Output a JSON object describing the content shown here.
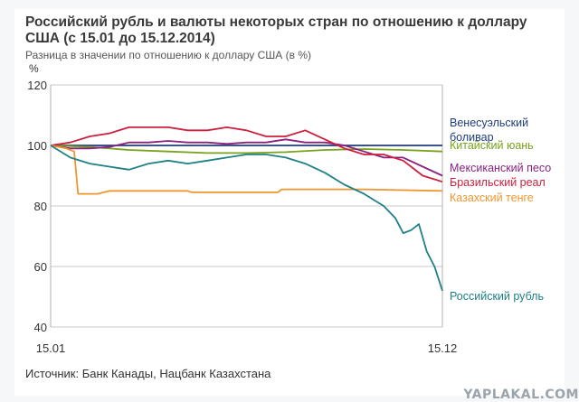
{
  "title": "Российский рубль и валюты некоторых стран по отношению к доллару США (с 15.01 до 15.12.2014)",
  "subtitle": "Разница в значении по отношению к доллару США (в %)",
  "source": "Источник: Банк Канады, Нацбанк Казахстана",
  "watermark": "YAPLAKAL.COM",
  "chart_data": {
    "type": "line",
    "ylabel": "%",
    "ylim": [
      40,
      120
    ],
    "yticks": [
      40,
      60,
      80,
      100,
      120
    ],
    "xlim": [
      0,
      1
    ],
    "xticks": [
      {
        "x": 0,
        "label": "15.01"
      },
      {
        "x": 1,
        "label": "15.12"
      }
    ],
    "grid": true,
    "legend_placement": "right, beside line ends",
    "series": [
      {
        "name": "Венесуэльский боливар",
        "color": "#1f3d7a",
        "points": [
          [
            0,
            100
          ],
          [
            1,
            100
          ]
        ]
      },
      {
        "name": "Китайский юань",
        "color": "#7aa21c",
        "points": [
          [
            0,
            100
          ],
          [
            0.1,
            99.5
          ],
          [
            0.2,
            98.5
          ],
          [
            0.3,
            98
          ],
          [
            0.4,
            97.5
          ],
          [
            0.5,
            97.5
          ],
          [
            0.6,
            97.8
          ],
          [
            0.7,
            98.5
          ],
          [
            0.8,
            98.8
          ],
          [
            0.9,
            98.5
          ],
          [
            1,
            98
          ]
        ]
      },
      {
        "name": "Мексиканский песо",
        "color": "#8a2282",
        "points": [
          [
            0,
            100
          ],
          [
            0.05,
            99
          ],
          [
            0.1,
            99
          ],
          [
            0.15,
            99.5
          ],
          [
            0.2,
            101
          ],
          [
            0.25,
            101
          ],
          [
            0.3,
            101.5
          ],
          [
            0.35,
            101
          ],
          [
            0.4,
            101
          ],
          [
            0.45,
            100.5
          ],
          [
            0.5,
            101
          ],
          [
            0.55,
            101
          ],
          [
            0.6,
            102
          ],
          [
            0.65,
            101
          ],
          [
            0.7,
            101
          ],
          [
            0.75,
            100
          ],
          [
            0.8,
            98
          ],
          [
            0.85,
            96
          ],
          [
            0.9,
            96
          ],
          [
            0.95,
            93
          ],
          [
            1,
            90
          ]
        ]
      },
      {
        "name": "Бразильский реал",
        "color": "#cc1f3d",
        "points": [
          [
            0,
            100
          ],
          [
            0.05,
            101
          ],
          [
            0.1,
            103
          ],
          [
            0.15,
            104
          ],
          [
            0.2,
            106
          ],
          [
            0.25,
            106
          ],
          [
            0.3,
            106
          ],
          [
            0.35,
            105
          ],
          [
            0.4,
            105
          ],
          [
            0.45,
            106
          ],
          [
            0.5,
            105
          ],
          [
            0.55,
            103
          ],
          [
            0.6,
            103
          ],
          [
            0.65,
            105
          ],
          [
            0.7,
            102
          ],
          [
            0.75,
            99
          ],
          [
            0.8,
            97
          ],
          [
            0.85,
            97
          ],
          [
            0.9,
            95
          ],
          [
            0.95,
            90
          ],
          [
            1,
            88
          ]
        ]
      },
      {
        "name": "Казахский тенге",
        "color": "#f0962e",
        "points": [
          [
            0,
            100
          ],
          [
            0.04,
            99
          ],
          [
            0.06,
            98
          ],
          [
            0.07,
            84
          ],
          [
            0.12,
            84
          ],
          [
            0.15,
            85
          ],
          [
            0.3,
            85
          ],
          [
            0.35,
            85
          ],
          [
            0.36,
            84.5
          ],
          [
            0.58,
            84.5
          ],
          [
            0.59,
            85.5
          ],
          [
            0.8,
            85.5
          ],
          [
            1,
            85
          ]
        ]
      },
      {
        "name": "Российский рубль",
        "color": "#1f8085",
        "points": [
          [
            0,
            100
          ],
          [
            0.05,
            96
          ],
          [
            0.1,
            94
          ],
          [
            0.15,
            93
          ],
          [
            0.2,
            92
          ],
          [
            0.25,
            94
          ],
          [
            0.3,
            95
          ],
          [
            0.35,
            94
          ],
          [
            0.4,
            95
          ],
          [
            0.45,
            96
          ],
          [
            0.5,
            97
          ],
          [
            0.55,
            97
          ],
          [
            0.6,
            96
          ],
          [
            0.65,
            94
          ],
          [
            0.7,
            91
          ],
          [
            0.75,
            87
          ],
          [
            0.8,
            84
          ],
          [
            0.85,
            80
          ],
          [
            0.88,
            76
          ],
          [
            0.9,
            71
          ],
          [
            0.92,
            72
          ],
          [
            0.94,
            74
          ],
          [
            0.96,
            65
          ],
          [
            0.98,
            60
          ],
          [
            1,
            52
          ]
        ]
      }
    ]
  }
}
